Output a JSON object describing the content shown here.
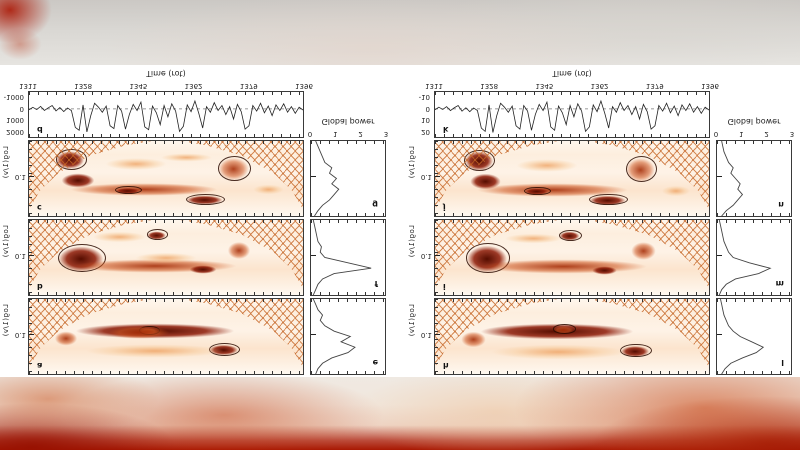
{
  "figure": {
    "axis_title": "Time (rot)",
    "global_title": "Global power",
    "period_label": "Log(1/ν)",
    "period_tick": "0.1",
    "orientation_note": "figure displayed vertically mirrored in video frame"
  },
  "chart_data": [
    {
      "id": "series-left",
      "type": "line",
      "panel": "d",
      "xlabel": "Time (rot)",
      "x_ticks": [
        "1311",
        "1328",
        "1345",
        "1362",
        "1379",
        "1396"
      ],
      "y_ticks": [
        -1000,
        0,
        1000,
        2000
      ],
      "ylim": [
        -1500,
        2500
      ],
      "zero_line": "dashed",
      "values": [
        80,
        -140,
        60,
        -220,
        140,
        -90,
        -300,
        180,
        -120,
        240,
        -80,
        160,
        1650,
        1900,
        -350,
        2050,
        600,
        -500,
        -150,
        300,
        -250,
        1500,
        1750,
        -300,
        200,
        1800,
        500,
        -400,
        150,
        -600,
        1600,
        1850,
        -250,
        350,
        1400,
        -300,
        700,
        -450,
        200,
        2000,
        1550,
        -350,
        250,
        -700,
        400,
        1700,
        -200,
        300,
        -550,
        150,
        -300,
        500,
        -200,
        900,
        -400,
        250,
        1800,
        1500,
        -300,
        200,
        -500,
        350,
        -250,
        600,
        -350,
        150,
        -450,
        300,
        -200,
        400,
        -150,
        100
      ]
    },
    {
      "id": "series-right",
      "type": "line",
      "panel": "k",
      "xlabel": "Time (rot)",
      "x_ticks": [
        "1311",
        "1328",
        "1345",
        "1362",
        "1379",
        "1396"
      ],
      "y_ticks": [
        -10,
        0,
        10,
        20
      ],
      "ylim": [
        -15,
        25
      ],
      "zero_line": "dashed",
      "values": [
        0.8,
        -1.5,
        0.5,
        -2,
        1.5,
        -1,
        -3,
        2,
        -1,
        2.5,
        -0.8,
        1.5,
        17,
        20,
        -3.5,
        21,
        6,
        -5,
        -1.5,
        3,
        -2.5,
        15,
        18,
        -3,
        2,
        19,
        5,
        -4,
        1.5,
        -6,
        16,
        19,
        -2.5,
        3.5,
        14,
        -3,
        7,
        -4.5,
        2,
        20,
        16,
        -3.5,
        2.5,
        -7,
        4,
        17,
        -2,
        3,
        -5.5,
        1.5,
        -3,
        5,
        -2,
        9,
        -4,
        2.5,
        18,
        15,
        -3,
        2,
        -5,
        3.5,
        -2.5,
        6,
        -3.5,
        1.5,
        -4.5,
        3,
        -2,
        4,
        -1.5,
        1
      ]
    },
    {
      "id": "wavelet-a",
      "type": "heatmap",
      "panel": "a",
      "ylabel": "Log(1/ν)",
      "ytick": "0.1",
      "blobs": [
        [
          7,
          44,
          78,
          26,
          3,
          0
        ],
        [
          64,
          22,
          14,
          19,
          3,
          1
        ],
        [
          8,
          34,
          11,
          26,
          2,
          0
        ],
        [
          12,
          18,
          68,
          24,
          1,
          0
        ],
        [
          39,
          50,
          9,
          13,
          2,
          1
        ],
        [
          25,
          44,
          30,
          22,
          2,
          0
        ]
      ]
    },
    {
      "id": "wavelet-b",
      "type": "heatmap",
      "panel": "b",
      "ylabel": "Log(1/ν)",
      "ytick": "0.1",
      "blobs": [
        [
          8,
          25,
          22,
          46,
          3,
          1
        ],
        [
          42,
          72,
          9,
          15,
          3,
          1
        ],
        [
          6,
          26,
          80,
          24,
          2,
          0
        ],
        [
          71,
          44,
          11,
          30,
          2,
          0
        ],
        [
          57,
          27,
          13,
          14,
          3,
          0
        ],
        [
          20,
          68,
          26,
          18,
          1,
          0
        ],
        [
          35,
          40,
          30,
          18,
          1,
          0
        ]
      ]
    },
    {
      "id": "wavelet-c",
      "type": "heatmap",
      "panel": "c",
      "ylabel": "Log(1/ν)",
      "ytick": "0.1",
      "blobs": [
        [
          8,
          58,
          14,
          32,
          3,
          1
        ],
        [
          10,
          34,
          16,
          26,
          3,
          0
        ],
        [
          6,
          24,
          72,
          22,
          2,
          0
        ],
        [
          30,
          28,
          12,
          11,
          3,
          1
        ],
        [
          67,
          42,
          15,
          40,
          2,
          1
        ],
        [
          55,
          13,
          18,
          16,
          3,
          1
        ],
        [
          24,
          58,
          30,
          22,
          1,
          0
        ],
        [
          80,
          26,
          15,
          18,
          1,
          0
        ],
        [
          45,
          70,
          25,
          15,
          1,
          0
        ]
      ]
    },
    {
      "id": "wavelet-h",
      "type": "heatmap",
      "panel": "h",
      "ylabel": "Log(1/ν)",
      "ytick": "0.1",
      "blobs": [
        [
          7,
          42,
          75,
          28,
          3,
          0
        ],
        [
          66,
          20,
          14,
          20,
          3,
          1
        ],
        [
          8,
          32,
          12,
          28,
          2,
          0
        ],
        [
          12,
          16,
          66,
          26,
          1,
          0
        ],
        [
          42,
          52,
          10,
          13,
          2,
          1
        ]
      ]
    },
    {
      "id": "wavelet-i",
      "type": "heatmap",
      "panel": "i",
      "ylabel": "Log(1/ν)",
      "ytick": "0.1",
      "blobs": [
        [
          9,
          24,
          20,
          48,
          3,
          1
        ],
        [
          44,
          70,
          10,
          16,
          3,
          1
        ],
        [
          6,
          25,
          82,
          25,
          2,
          0
        ],
        [
          70,
          42,
          12,
          32,
          2,
          0
        ],
        [
          56,
          25,
          12,
          15,
          3,
          0
        ],
        [
          22,
          66,
          28,
          18,
          1,
          0
        ]
      ]
    },
    {
      "id": "wavelet-j",
      "type": "heatmap",
      "panel": "j",
      "ylabel": "Log(1/ν)",
      "ytick": "0.1",
      "blobs": [
        [
          9,
          56,
          14,
          34,
          3,
          1
        ],
        [
          11,
          32,
          15,
          28,
          3,
          0
        ],
        [
          6,
          22,
          74,
          24,
          2,
          0
        ],
        [
          31,
          26,
          12,
          12,
          3,
          1
        ],
        [
          68,
          40,
          14,
          42,
          2,
          1
        ],
        [
          54,
          12,
          18,
          17,
          3,
          1
        ],
        [
          26,
          56,
          30,
          22,
          1,
          0
        ],
        [
          81,
          24,
          14,
          18,
          1,
          0
        ]
      ]
    },
    {
      "id": "global-e",
      "type": "line",
      "panel": "e",
      "xlabel": "Global power",
      "x_ticks": [
        0,
        1,
        2,
        3
      ],
      "xlim": [
        0,
        3.2
      ],
      "values": [
        0.2,
        0.3,
        0.5,
        0.9,
        1.6,
        1.9,
        1.3,
        1.7,
        1.0,
        0.6,
        0.4,
        0.5,
        0.3,
        0.2,
        0.1
      ]
    },
    {
      "id": "global-f",
      "type": "line",
      "panel": "f",
      "xlabel": "Global power",
      "x_ticks": [
        0,
        1,
        2,
        3
      ],
      "xlim": [
        0,
        3.2
      ],
      "values": [
        0.1,
        0.2,
        0.3,
        0.5,
        1.0,
        2.6,
        1.6,
        0.6,
        0.4,
        0.45,
        0.3,
        0.25,
        0.2,
        0.15,
        0.1
      ]
    },
    {
      "id": "global-g",
      "type": "line",
      "panel": "g",
      "xlabel": "Global power",
      "x_ticks": [
        0,
        1,
        2,
        3
      ],
      "xlim": [
        0,
        3.2
      ],
      "values": [
        0.15,
        0.3,
        0.5,
        0.8,
        1.0,
        1.2,
        0.9,
        1.1,
        0.8,
        0.9,
        0.6,
        0.5,
        0.4,
        0.3,
        0.2
      ]
    },
    {
      "id": "global-l",
      "type": "line",
      "panel": "l",
      "xlabel": "Global power",
      "x_ticks": [
        0,
        1,
        2,
        3
      ],
      "xlim": [
        0,
        3.2
      ],
      "values": [
        0.2,
        0.35,
        0.6,
        1.1,
        1.7,
        2.0,
        1.5,
        1.0,
        0.7,
        0.5,
        0.4,
        0.3,
        0.25,
        0.2,
        0.15
      ]
    },
    {
      "id": "global-m",
      "type": "line",
      "panel": "m",
      "xlabel": "Global power",
      "x_ticks": [
        0,
        1,
        2,
        3
      ],
      "xlim": [
        0,
        3.2
      ],
      "values": [
        0.1,
        0.2,
        0.4,
        0.8,
        1.8,
        2.3,
        1.4,
        0.7,
        0.5,
        0.4,
        0.3,
        0.25,
        0.2,
        0.15,
        0.1
      ]
    },
    {
      "id": "global-n",
      "type": "line",
      "panel": "n",
      "xlabel": "Global power",
      "x_ticks": [
        0,
        1,
        2,
        3
      ],
      "xlim": [
        0,
        3.2
      ],
      "values": [
        0.2,
        0.4,
        0.7,
        0.9,
        1.1,
        0.9,
        1.0,
        0.8,
        0.6,
        0.7,
        0.5,
        0.4,
        0.3,
        0.25,
        0.2
      ]
    }
  ]
}
